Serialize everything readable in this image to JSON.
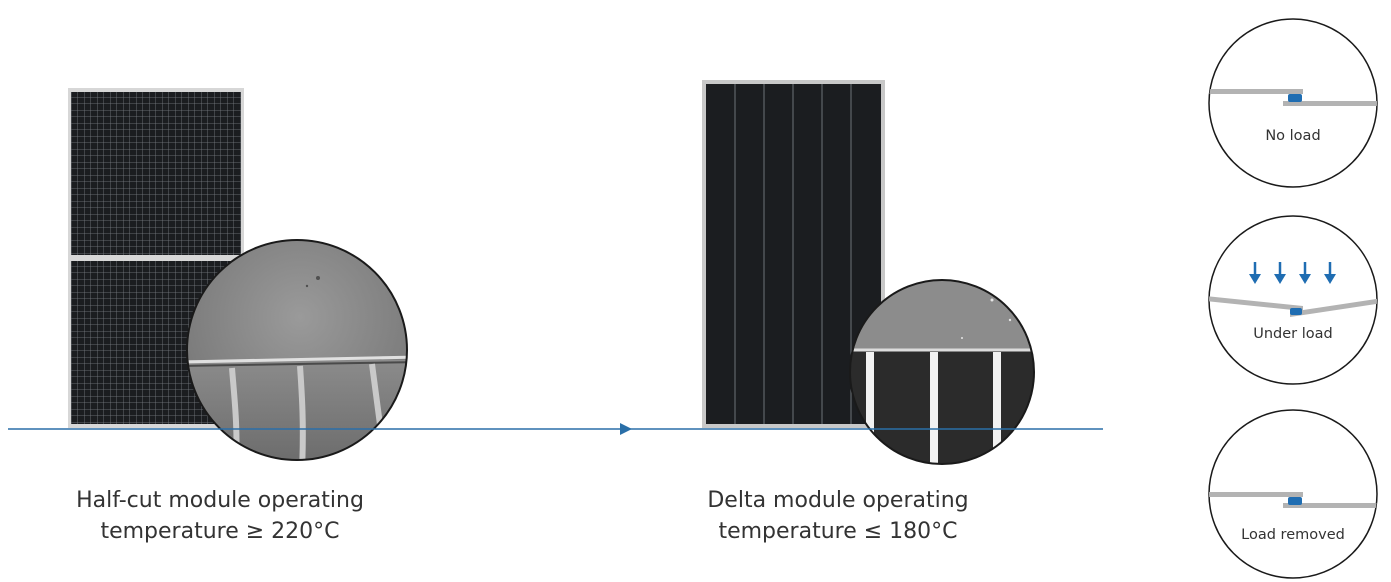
{
  "colors": {
    "axis_line": "#2a6fa8",
    "load_arrow": "#1f6db2",
    "cell_black": "#1b1d20",
    "frame_gray": "#c8c8c8",
    "strip_gray": "#b3b3b3",
    "contact_blue": "#1f6db2"
  },
  "modules": {
    "half_cut": {
      "caption_line1": "Half-cut module operating",
      "caption_line2": "temperature ≥ 220°C"
    },
    "delta": {
      "caption_line1": "Delta module operating",
      "caption_line2": "temperature ≤ 180°C"
    }
  },
  "load_states": [
    {
      "label": "No load",
      "arrows": 0
    },
    {
      "label": "Under load",
      "arrows": 4
    },
    {
      "label": "Load removed",
      "arrows": 0
    }
  ]
}
